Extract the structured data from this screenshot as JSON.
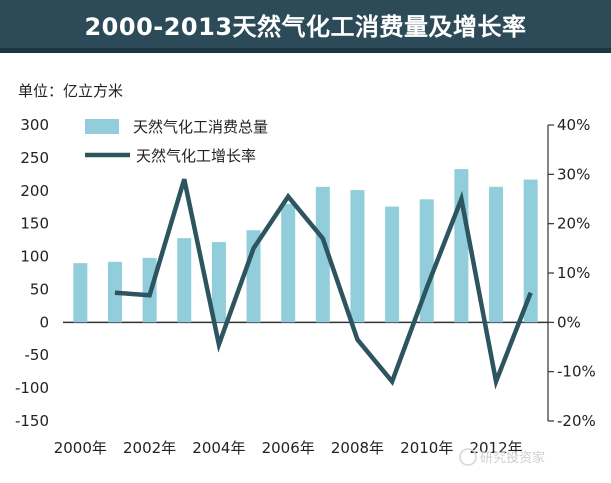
{
  "chart_data": {
    "type": "bar+line",
    "title": "2000-2013天然气化工消费量及增长率",
    "unit_label": "单位：亿立方米",
    "categories": [
      "2000年",
      "2001年",
      "2002年",
      "2003年",
      "2004年",
      "2005年",
      "2006年",
      "2007年",
      "2008年",
      "2009年",
      "2010年",
      "2011年",
      "2012年",
      "2013年"
    ],
    "x_tick_labels": [
      "2000年",
      "2002年",
      "2004年",
      "2006年",
      "2008年",
      "2010年",
      "2012年"
    ],
    "series": [
      {
        "name": "天然气化工消费总量",
        "type": "bar",
        "axis": "left",
        "color": "#92cddc",
        "values": [
          90,
          92,
          98,
          128,
          122,
          140,
          180,
          206,
          201,
          176,
          187,
          233,
          206,
          217
        ]
      },
      {
        "name": "天然气化工增长率",
        "type": "line",
        "axis": "right",
        "color": "#2d5560",
        "values": [
          null,
          6,
          5.5,
          29,
          -4.5,
          15,
          25.5,
          17,
          -3.5,
          -12,
          7,
          25,
          -12,
          6
        ]
      }
    ],
    "y_left": {
      "min": -150,
      "max": 300,
      "ticks": [
        300,
        250,
        200,
        150,
        100,
        50,
        0,
        -50,
        -100,
        -150
      ]
    },
    "y_right": {
      "min": -20,
      "max": 40,
      "ticks": [
        "40%",
        "30%",
        "20%",
        "10%",
        "0%",
        "-10%",
        "-20%"
      ]
    },
    "legend_position": "top-left"
  },
  "watermark": "研究投资家"
}
